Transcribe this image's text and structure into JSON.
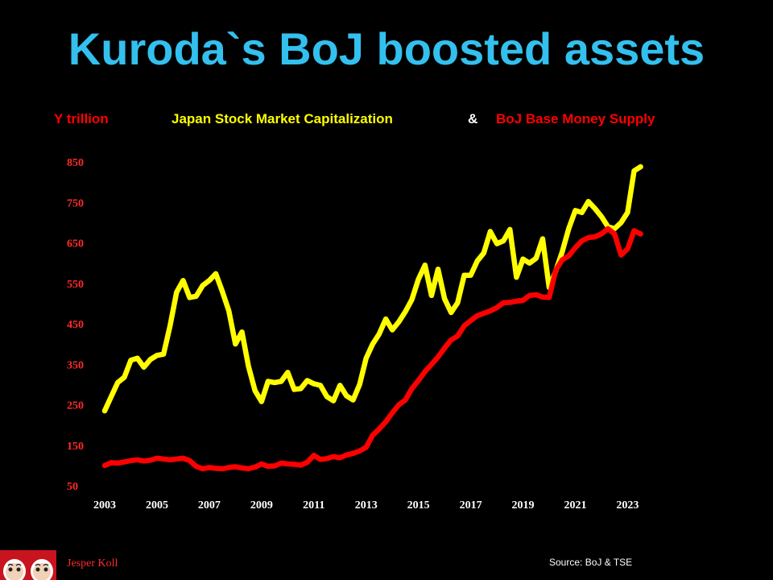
{
  "title": "Kuroda`s BoJ boosted assets",
  "legend": {
    "unit": "Y trillion",
    "series1": "Japan Stock Market Capitalization",
    "amp": "&",
    "series2": "BoJ Base Money Supply"
  },
  "footer": {
    "author": "Jesper Koll",
    "source": "Source:  BoJ & TSE"
  },
  "colors": {
    "background": "#000000",
    "title": "#33c0ee",
    "stocks": "#ffff00",
    "money": "#ff0000",
    "tick_y": "#ff2a2a",
    "tick_x": "#ffffff",
    "amp": "#ffffff"
  },
  "chart_data": {
    "type": "line",
    "title": "Kuroda`s BoJ boosted assets",
    "xlabel": "",
    "ylabel": "Y trillion",
    "xlim": [
      2003,
      2023.85
    ],
    "ylim": [
      50,
      850
    ],
    "xticks": [
      "2003",
      "2005",
      "2007",
      "2009",
      "2011",
      "2013",
      "2015",
      "2017",
      "2019",
      "2021",
      "2023"
    ],
    "yticks": [
      50,
      150,
      250,
      350,
      450,
      550,
      650,
      750,
      850
    ],
    "grid": false,
    "legend_position": "top",
    "series": [
      {
        "name": "Japan Stock Market Capitalization",
        "color": "#ffff00",
        "x": [
          2003.0,
          2003.25,
          2003.5,
          2003.75,
          2004.0,
          2004.25,
          2004.5,
          2004.75,
          2005.0,
          2005.25,
          2005.5,
          2005.75,
          2006.0,
          2006.25,
          2006.5,
          2006.75,
          2007.0,
          2007.25,
          2007.5,
          2007.75,
          2008.0,
          2008.25,
          2008.5,
          2008.75,
          2009.0,
          2009.25,
          2009.5,
          2009.75,
          2010.0,
          2010.25,
          2010.5,
          2010.75,
          2011.0,
          2011.25,
          2011.5,
          2011.75,
          2012.0,
          2012.25,
          2012.5,
          2012.75,
          2013.0,
          2013.25,
          2013.5,
          2013.75,
          2014.0,
          2014.25,
          2014.5,
          2014.75,
          2015.0,
          2015.25,
          2015.5,
          2015.75,
          2016.0,
          2016.25,
          2016.5,
          2016.75,
          2017.0,
          2017.25,
          2017.5,
          2017.75,
          2018.0,
          2018.25,
          2018.5,
          2018.75,
          2019.0,
          2019.25,
          2019.5,
          2019.75,
          2020.0,
          2020.25,
          2020.5,
          2020.75,
          2021.0,
          2021.25,
          2021.5,
          2021.75,
          2022.0,
          2022.25,
          2022.5,
          2022.75,
          2023.0,
          2023.25,
          2023.5
        ],
        "values": [
          235,
          270,
          305,
          318,
          360,
          365,
          343,
          362,
          372,
          375,
          445,
          528,
          557,
          515,
          518,
          545,
          557,
          574,
          530,
          482,
          400,
          430,
          345,
          285,
          258,
          308,
          305,
          308,
          330,
          288,
          290,
          310,
          302,
          298,
          270,
          260,
          298,
          272,
          262,
          300,
          365,
          400,
          425,
          462,
          435,
          455,
          480,
          510,
          560,
          595,
          520,
          585,
          512,
          478,
          502,
          570,
          570,
          605,
          625,
          678,
          648,
          655,
          683,
          565,
          610,
          600,
          612,
          660,
          540,
          580,
          628,
          685,
          730,
          725,
          752,
          735,
          715,
          690,
          685,
          700,
          725,
          828,
          838
        ]
      },
      {
        "name": "BoJ Base Money Supply",
        "color": "#ff0000",
        "x": [
          2003.0,
          2003.25,
          2003.5,
          2003.75,
          2004.0,
          2004.25,
          2004.5,
          2004.75,
          2005.0,
          2005.25,
          2005.5,
          2005.75,
          2006.0,
          2006.25,
          2006.5,
          2006.75,
          2007.0,
          2007.25,
          2007.5,
          2007.75,
          2008.0,
          2008.25,
          2008.5,
          2008.75,
          2009.0,
          2009.25,
          2009.5,
          2009.75,
          2010.0,
          2010.25,
          2010.5,
          2010.75,
          2011.0,
          2011.25,
          2011.5,
          2011.75,
          2012.0,
          2012.25,
          2012.5,
          2012.75,
          2013.0,
          2013.25,
          2013.5,
          2013.75,
          2014.0,
          2014.25,
          2014.5,
          2014.75,
          2015.0,
          2015.25,
          2015.5,
          2015.75,
          2016.0,
          2016.25,
          2016.5,
          2016.75,
          2017.0,
          2017.25,
          2017.5,
          2017.75,
          2018.0,
          2018.25,
          2018.5,
          2018.75,
          2019.0,
          2019.25,
          2019.5,
          2019.75,
          2020.0,
          2020.25,
          2020.5,
          2020.75,
          2021.0,
          2021.25,
          2021.5,
          2021.75,
          2022.0,
          2022.25,
          2022.5,
          2022.75,
          2023.0,
          2023.25,
          2023.5
        ],
        "values": [
          100,
          107,
          106,
          109,
          112,
          114,
          111,
          113,
          118,
          116,
          114,
          116,
          118,
          112,
          98,
          92,
          95,
          93,
          92,
          95,
          97,
          94,
          92,
          96,
          104,
          98,
          99,
          106,
          104,
          103,
          101,
          108,
          125,
          115,
          117,
          122,
          119,
          126,
          130,
          136,
          145,
          175,
          190,
          208,
          230,
          250,
          262,
          290,
          310,
          332,
          350,
          368,
          390,
          410,
          420,
          445,
          458,
          470,
          476,
          482,
          490,
          502,
          503,
          506,
          508,
          520,
          522,
          516,
          515,
          582,
          608,
          618,
          638,
          655,
          663,
          665,
          672,
          685,
          672,
          620,
          635,
          680,
          672
        ]
      }
    ]
  }
}
